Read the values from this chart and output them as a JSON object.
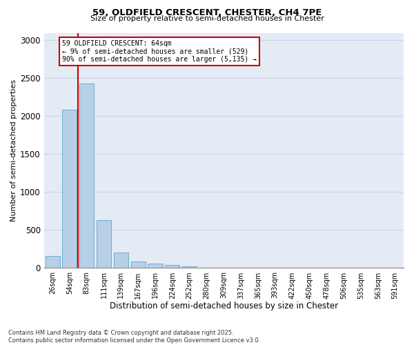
{
  "title": "59, OLDFIELD CRESCENT, CHESTER, CH4 7PE",
  "subtitle": "Size of property relative to semi-detached houses in Chester",
  "xlabel": "Distribution of semi-detached houses by size in Chester",
  "ylabel": "Number of semi-detached properties",
  "categories": [
    "26sqm",
    "54sqm",
    "83sqm",
    "111sqm",
    "139sqm",
    "167sqm",
    "196sqm",
    "224sqm",
    "252sqm",
    "280sqm",
    "309sqm",
    "337sqm",
    "365sqm",
    "393sqm",
    "422sqm",
    "450sqm",
    "478sqm",
    "506sqm",
    "535sqm",
    "563sqm",
    "591sqm"
  ],
  "values": [
    160,
    2090,
    2430,
    630,
    200,
    90,
    55,
    40,
    20,
    0,
    0,
    0,
    0,
    0,
    0,
    0,
    0,
    0,
    0,
    0,
    0
  ],
  "bar_color": "#b8cfe8",
  "bar_edge_color": "#6baad0",
  "vline_color": "#cc0000",
  "vline_x_index": 1.5,
  "annotation_title": "59 OLDFIELD CRESCENT: 64sqm",
  "annotation_line1": "← 9% of semi-detached houses are smaller (529)",
  "annotation_line2": "90% of semi-detached houses are larger (5,135) →",
  "annotation_box_color": "#cc0000",
  "ylim": [
    0,
    3100
  ],
  "yticks": [
    0,
    500,
    1000,
    1500,
    2000,
    2500,
    3000
  ],
  "grid_color": "#c8d4e8",
  "background_color": "#e4ebf5",
  "footnote1": "Contains HM Land Registry data © Crown copyright and database right 2025.",
  "footnote2": "Contains public sector information licensed under the Open Government Licence v3.0."
}
